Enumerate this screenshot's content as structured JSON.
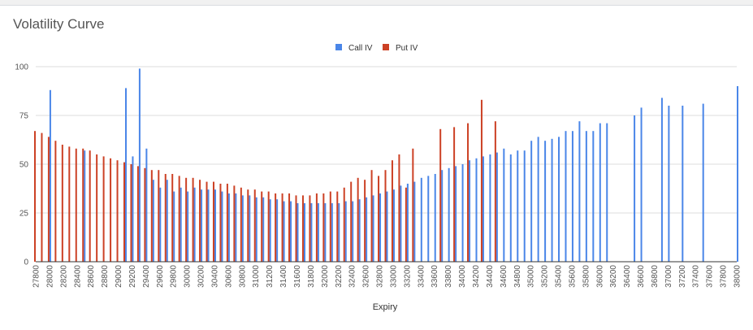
{
  "chart_data": {
    "type": "bar",
    "title": "Volatility Curve",
    "xlabel": "Expiry",
    "ylabel": "",
    "ylim": [
      0,
      100
    ],
    "yticks": [
      0,
      25,
      50,
      75,
      100
    ],
    "xticks": [
      27800,
      28000,
      28200,
      28400,
      28600,
      28800,
      29000,
      29200,
      29400,
      29600,
      29800,
      30000,
      30200,
      30400,
      30600,
      30800,
      31000,
      31200,
      31400,
      31600,
      31800,
      32000,
      32200,
      32400,
      32600,
      32800,
      33000,
      33200,
      33400,
      33600,
      33800,
      34000,
      34200,
      34400,
      34600,
      34800,
      35000,
      35200,
      35400,
      35600,
      35800,
      36000,
      36200,
      36400,
      36600,
      36800,
      37000,
      37200,
      37400,
      37600,
      37800,
      38000
    ],
    "xrange": [
      27800,
      38000
    ],
    "grid": true,
    "legend_position": "top-center",
    "series": [
      {
        "name": "Call IV",
        "color": "#4a86e8",
        "points": [
          [
            28000,
            88
          ],
          [
            28500,
            57
          ],
          [
            29100,
            89
          ],
          [
            29200,
            54
          ],
          [
            29300,
            99
          ],
          [
            29400,
            58
          ],
          [
            29500,
            42
          ],
          [
            29600,
            38
          ],
          [
            29700,
            42
          ],
          [
            29800,
            36
          ],
          [
            29900,
            38
          ],
          [
            30000,
            36
          ],
          [
            30100,
            38
          ],
          [
            30200,
            37
          ],
          [
            30300,
            37
          ],
          [
            30400,
            37
          ],
          [
            30500,
            36
          ],
          [
            30600,
            35
          ],
          [
            30700,
            35
          ],
          [
            30800,
            34
          ],
          [
            30900,
            34
          ],
          [
            31000,
            33
          ],
          [
            31100,
            33
          ],
          [
            31200,
            32
          ],
          [
            31300,
            32
          ],
          [
            31400,
            31
          ],
          [
            31500,
            31
          ],
          [
            31600,
            30
          ],
          [
            31700,
            30
          ],
          [
            31800,
            30
          ],
          [
            31900,
            30
          ],
          [
            32000,
            30
          ],
          [
            32100,
            30
          ],
          [
            32200,
            30
          ],
          [
            32300,
            31
          ],
          [
            32400,
            31
          ],
          [
            32500,
            32
          ],
          [
            32600,
            33
          ],
          [
            32700,
            34
          ],
          [
            32800,
            35
          ],
          [
            32900,
            36
          ],
          [
            33000,
            37
          ],
          [
            33100,
            39
          ],
          [
            33200,
            40
          ],
          [
            33300,
            41
          ],
          [
            33400,
            43
          ],
          [
            33500,
            44
          ],
          [
            33600,
            45
          ],
          [
            33700,
            47
          ],
          [
            33800,
            48
          ],
          [
            33900,
            49
          ],
          [
            34000,
            50
          ],
          [
            34100,
            52
          ],
          [
            34200,
            53
          ],
          [
            34300,
            54
          ],
          [
            34400,
            55
          ],
          [
            34500,
            56
          ],
          [
            34600,
            58
          ],
          [
            34700,
            55
          ],
          [
            34800,
            57
          ],
          [
            34900,
            57
          ],
          [
            35000,
            62
          ],
          [
            35100,
            64
          ],
          [
            35200,
            62
          ],
          [
            35300,
            63
          ],
          [
            35400,
            64
          ],
          [
            35500,
            67
          ],
          [
            35600,
            67
          ],
          [
            35700,
            72
          ],
          [
            35800,
            67
          ],
          [
            35900,
            67
          ],
          [
            36000,
            71
          ],
          [
            36100,
            71
          ],
          [
            36500,
            75
          ],
          [
            36600,
            79
          ],
          [
            36900,
            84
          ],
          [
            37000,
            80
          ],
          [
            37200,
            80
          ],
          [
            37500,
            81
          ],
          [
            38000,
            90
          ]
        ]
      },
      {
        "name": "Put IV",
        "color": "#cc4125",
        "points": [
          [
            27800,
            67
          ],
          [
            27900,
            66
          ],
          [
            28000,
            64
          ],
          [
            28100,
            62
          ],
          [
            28200,
            60
          ],
          [
            28300,
            59
          ],
          [
            28400,
            58
          ],
          [
            28500,
            58
          ],
          [
            28600,
            57
          ],
          [
            28700,
            55
          ],
          [
            28800,
            54
          ],
          [
            28900,
            53
          ],
          [
            29000,
            52
          ],
          [
            29100,
            51
          ],
          [
            29200,
            50
          ],
          [
            29300,
            49
          ],
          [
            29400,
            48
          ],
          [
            29500,
            47
          ],
          [
            29600,
            47
          ],
          [
            29700,
            45
          ],
          [
            29800,
            45
          ],
          [
            29900,
            44
          ],
          [
            30000,
            43
          ],
          [
            30100,
            43
          ],
          [
            30200,
            42
          ],
          [
            30300,
            41
          ],
          [
            30400,
            41
          ],
          [
            30500,
            40
          ],
          [
            30600,
            40
          ],
          [
            30700,
            39
          ],
          [
            30800,
            38
          ],
          [
            30900,
            37
          ],
          [
            31000,
            37
          ],
          [
            31100,
            36
          ],
          [
            31200,
            36
          ],
          [
            31300,
            35
          ],
          [
            31400,
            35
          ],
          [
            31500,
            35
          ],
          [
            31600,
            34
          ],
          [
            31700,
            34
          ],
          [
            31800,
            34
          ],
          [
            31900,
            35
          ],
          [
            32000,
            35
          ],
          [
            32100,
            36
          ],
          [
            32200,
            36
          ],
          [
            32300,
            38
          ],
          [
            32400,
            41
          ],
          [
            32500,
            43
          ],
          [
            32600,
            42
          ],
          [
            32700,
            47
          ],
          [
            32800,
            44
          ],
          [
            32900,
            47
          ],
          [
            33000,
            52
          ],
          [
            33100,
            55
          ],
          [
            33200,
            38
          ],
          [
            33300,
            58
          ],
          [
            33700,
            68
          ],
          [
            33900,
            69
          ],
          [
            34100,
            71
          ],
          [
            34300,
            83
          ],
          [
            34500,
            72
          ]
        ]
      }
    ]
  }
}
